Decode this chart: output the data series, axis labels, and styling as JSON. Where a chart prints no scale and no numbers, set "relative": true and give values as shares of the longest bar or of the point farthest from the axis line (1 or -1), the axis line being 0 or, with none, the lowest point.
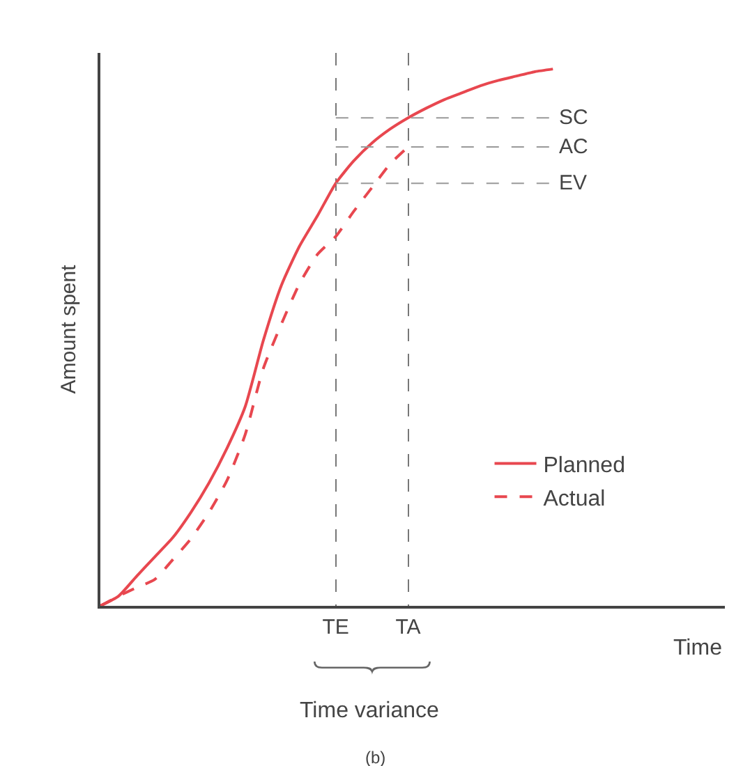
{
  "chart_data": {
    "type": "line",
    "relative": true,
    "xlabel": "Time",
    "ylabel": "Amount spent",
    "categories": [
      null,
      null,
      null,
      null,
      null,
      null,
      null,
      null,
      null,
      null,
      null,
      null,
      null,
      "TE",
      null,
      null,
      null,
      "TA",
      null,
      null,
      null,
      null,
      null,
      null,
      null,
      null,
      null,
      null,
      null,
      null,
      null,
      null,
      null,
      null,
      null
    ],
    "series": [
      {
        "name": "Planned",
        "color": "#e8474f",
        "line_style": "solid",
        "values": [
          0,
          0.018,
          0.055,
          0.091,
          0.127,
          0.174,
          0.229,
          0.294,
          0.371,
          0.494,
          0.597,
          0.67,
          0.727,
          0.787,
          0.829,
          0.862,
          0.888,
          0.909,
          0.927,
          0.943,
          0.956,
          0.969,
          0.979,
          0.987,
          0.995,
          1,
          null,
          null,
          null,
          null,
          null,
          null,
          null,
          null,
          null
        ]
      },
      {
        "name": "Actual",
        "color": "#e8474f",
        "line_style": "dashed",
        "values": [
          0,
          0.018,
          0.034,
          0.049,
          0.086,
          0.125,
          0.174,
          0.234,
          0.319,
          0.442,
          0.525,
          0.6,
          0.655,
          0.688,
          0.735,
          0.779,
          0.823,
          0.855,
          null,
          null,
          null,
          null,
          null,
          null,
          null,
          null,
          null,
          null,
          null,
          null,
          null,
          null,
          null,
          null,
          null
        ]
      }
    ],
    "ref_lines": [
      {
        "axis": "y",
        "value": 0.909,
        "label": "SC",
        "color": "#999999",
        "line_style": "dashed"
      },
      {
        "axis": "y",
        "value": 0.855,
        "label": "AC",
        "color": "#999999",
        "line_style": "dashed"
      },
      {
        "axis": "y",
        "value": 0.787,
        "label": "EV",
        "color": "#999999",
        "line_style": "dashed"
      }
    ],
    "grid": "x",
    "legend": "bottom right",
    "marker": "none",
    "annotations": [
      "Time variance",
      "(b)"
    ]
  }
}
